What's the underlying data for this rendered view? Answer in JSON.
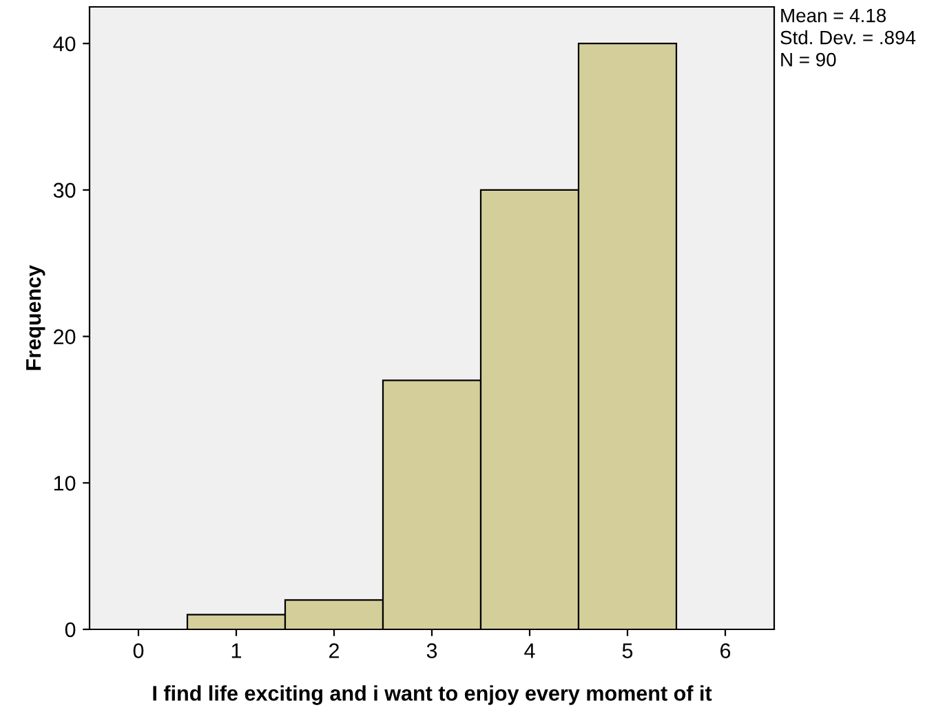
{
  "chart_data": {
    "type": "histogram",
    "xlabel": "I find life exciting and i want to enjoy every moment of it",
    "ylabel": "Frequency",
    "bins": [
      0.5,
      1.5,
      2.5,
      3.5,
      4.5,
      5.5
    ],
    "values": [
      1,
      2,
      17,
      30,
      40
    ],
    "color": "#d4cf9a",
    "xlim": [
      -0.5,
      6.5
    ],
    "xticks": [
      0,
      1,
      2,
      3,
      4,
      5,
      6
    ],
    "ylim": [
      0,
      42.5
    ],
    "yticks": [
      0,
      10,
      20,
      30,
      40
    ],
    "grid": false,
    "annotations": [
      "Mean = 4.18",
      "Std. Dev. = .894",
      "N = 90"
    ]
  }
}
